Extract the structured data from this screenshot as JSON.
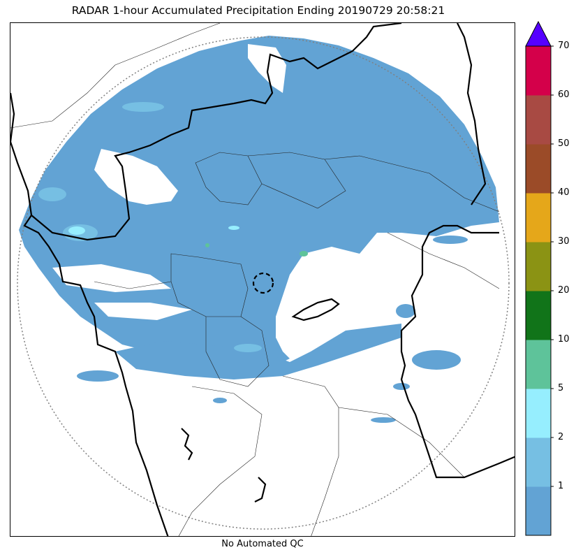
{
  "title": "RADAR 1-hour Accumulated Precipitation Ending 20190729 20:58:21",
  "footer": "No Automated QC",
  "chart_data": {
    "type": "heatmap",
    "title": "RADAR 1-hour Accumulated Precipitation Ending 20190729 20:58:21",
    "colorbar": {
      "bounds": [
        0,
        1,
        2,
        5,
        10,
        20,
        30,
        40,
        50,
        60,
        70
      ],
      "tick_labels": [
        "1",
        "2",
        "5",
        "10",
        "20",
        "30",
        "40",
        "50",
        "60",
        "70"
      ],
      "colors": [
        "#62a3d4",
        "#76bfe3",
        "#96eefe",
        "#5ec39a",
        "#117419",
        "#8b9314",
        "#e5a71a",
        "#9b4b28",
        "#a84a43",
        "#d4004a"
      ],
      "extend_max_color": "#5500ff",
      "extend": "max"
    },
    "grid": false,
    "legend": "colorbar-right"
  }
}
